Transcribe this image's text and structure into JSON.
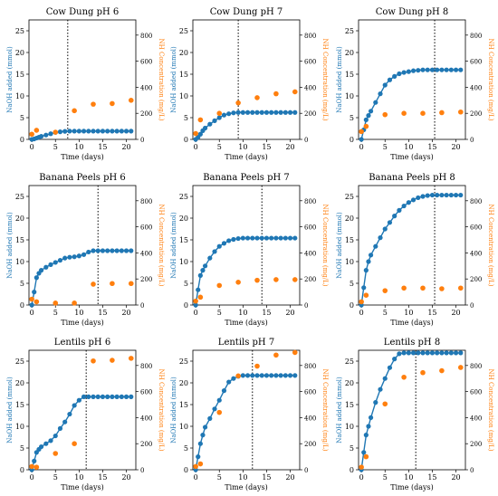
{
  "figure": {
    "left_ylabel": "NaOH added (mmol)",
    "right_ylabel": "NH Concentration (mg/L)",
    "xlabel": "Time (days)",
    "colors": {
      "naoh": "#1f77b4",
      "nh": "#ff7f0e",
      "axis": "#000000"
    }
  },
  "chart_data": [
    {
      "type": "scatter",
      "title": "Cow Dung pH 6",
      "xlabel": "Time (days)",
      "ylabel": "NaOH added (mmol)",
      "y2label": "NH Concentration (mg/L)",
      "xlim": [
        -0.6,
        22
      ],
      "ylim": [
        0,
        27.5
      ],
      "y2lim": [
        0,
        916.7
      ],
      "xticks": [
        0,
        5,
        10,
        15,
        20
      ],
      "yticks": [
        0,
        5,
        10,
        15,
        20,
        25
      ],
      "y2ticks": [
        0,
        200,
        400,
        600,
        800
      ],
      "vline": 7.6,
      "series": [
        {
          "axis": "left",
          "style": "line+markers",
          "x": [
            0,
            0.5,
            1,
            1.5,
            2,
            3,
            4,
            5,
            6,
            7,
            8,
            9,
            10,
            11,
            12,
            13,
            14,
            15,
            16,
            17,
            18,
            19,
            20,
            21
          ],
          "y": [
            0,
            0.1,
            0.3,
            0.5,
            0.7,
            1.0,
            1.3,
            1.6,
            1.75,
            1.85,
            1.9,
            1.9,
            1.9,
            1.9,
            1.9,
            1.9,
            1.9,
            1.9,
            1.9,
            1.9,
            1.9,
            1.9,
            1.9,
            1.9
          ]
        },
        {
          "axis": "right",
          "style": "markers",
          "x": [
            0,
            1,
            5,
            9,
            13,
            17,
            21
          ],
          "y": [
            40,
            70,
            55,
            220,
            270,
            275,
            300
          ]
        }
      ]
    },
    {
      "type": "scatter",
      "title": "Cow Dung pH 7",
      "xlabel": "Time (days)",
      "ylabel": "NaOH added (mmol)",
      "y2label": "NH Concentration (mg/L)",
      "xlim": [
        -0.6,
        22
      ],
      "ylim": [
        0,
        27.5
      ],
      "y2lim": [
        0,
        916.7
      ],
      "xticks": [
        0,
        5,
        10,
        15,
        20
      ],
      "yticks": [
        0,
        5,
        10,
        15,
        20,
        25
      ],
      "y2ticks": [
        0,
        200,
        400,
        600,
        800
      ],
      "vline": 9,
      "series": [
        {
          "axis": "left",
          "style": "line+markers",
          "x": [
            0,
            0.5,
            1,
            1.5,
            2,
            3,
            4,
            5,
            6,
            7,
            8,
            9,
            10,
            11,
            12,
            13,
            14,
            15,
            16,
            17,
            18,
            19,
            20,
            21
          ],
          "y": [
            0,
            0.5,
            1.2,
            2,
            2.6,
            3.5,
            4.3,
            5,
            5.6,
            5.9,
            6.1,
            6.2,
            6.2,
            6.2,
            6.2,
            6.2,
            6.2,
            6.2,
            6.2,
            6.2,
            6.2,
            6.2,
            6.2,
            6.2
          ]
        },
        {
          "axis": "right",
          "style": "markers",
          "x": [
            0,
            1,
            5,
            9,
            13,
            17,
            21
          ],
          "y": [
            45,
            150,
            200,
            280,
            320,
            350,
            365
          ]
        }
      ]
    },
    {
      "type": "scatter",
      "title": "Cow Dung pH 8",
      "xlabel": "Time (days)",
      "ylabel": "NaOH added (mmol)",
      "y2label": "NH Concentration (mg/L)",
      "xlim": [
        -0.6,
        22
      ],
      "ylim": [
        0,
        27.5
      ],
      "y2lim": [
        0,
        916.7
      ],
      "xticks": [
        0,
        5,
        10,
        15,
        20
      ],
      "yticks": [
        0,
        5,
        10,
        15,
        20,
        25
      ],
      "y2ticks": [
        0,
        200,
        400,
        600,
        800
      ],
      "vline": 15.5,
      "series": [
        {
          "axis": "left",
          "style": "line+markers",
          "x": [
            0,
            0.5,
            1,
            1.5,
            2,
            3,
            4,
            5,
            6,
            7,
            8,
            9,
            10,
            11,
            12,
            13,
            14,
            15,
            16,
            17,
            18,
            19,
            20,
            21
          ],
          "y": [
            0,
            2.2,
            4.5,
            5.5,
            6.5,
            8.5,
            10.5,
            12.5,
            13.7,
            14.5,
            15.1,
            15.4,
            15.6,
            15.8,
            15.9,
            16,
            16,
            16,
            16,
            16,
            16,
            16,
            16,
            16
          ]
        },
        {
          "axis": "right",
          "style": "markers",
          "x": [
            0,
            1,
            5,
            9,
            13,
            17,
            21
          ],
          "y": [
            60,
            100,
            190,
            200,
            200,
            205,
            210
          ]
        }
      ]
    },
    {
      "type": "scatter",
      "title": "Banana Peels pH 6",
      "xlabel": "Time (days)",
      "ylabel": "NaOH added (mmol)",
      "y2label": "NH Concentration (mg/L)",
      "xlim": [
        -0.6,
        22
      ],
      "ylim": [
        0,
        27.5
      ],
      "y2lim": [
        0,
        916.7
      ],
      "xticks": [
        0,
        5,
        10,
        15,
        20
      ],
      "yticks": [
        0,
        5,
        10,
        15,
        20,
        25
      ],
      "y2ticks": [
        0,
        200,
        400,
        600,
        800
      ],
      "vline": 14,
      "series": [
        {
          "axis": "left",
          "style": "line+markers",
          "x": [
            0,
            0.5,
            1,
            1.5,
            2,
            3,
            4,
            5,
            6,
            7,
            8,
            9,
            10,
            11,
            12,
            13,
            14,
            15,
            16,
            17,
            18,
            19,
            20,
            21
          ],
          "y": [
            0,
            3,
            6.3,
            7.3,
            8,
            8.7,
            9.3,
            9.8,
            10.3,
            10.8,
            11,
            11.1,
            11.3,
            11.6,
            12.2,
            12.5,
            12.5,
            12.5,
            12.5,
            12.5,
            12.5,
            12.5,
            12.5,
            12.5
          ]
        },
        {
          "axis": "right",
          "style": "markers",
          "x": [
            0,
            1,
            5,
            9,
            13,
            17,
            21
          ],
          "y": [
            45,
            25,
            15,
            15,
            160,
            165,
            165
          ]
        }
      ]
    },
    {
      "type": "scatter",
      "title": "Banana Peels pH 7",
      "xlabel": "Time (days)",
      "ylabel": "NaOH added (mmol)",
      "y2label": "NH Concentration (mg/L)",
      "xlim": [
        -0.6,
        22
      ],
      "ylim": [
        0,
        27.5
      ],
      "y2lim": [
        0,
        916.7
      ],
      "xticks": [
        0,
        5,
        10,
        15,
        20
      ],
      "yticks": [
        0,
        5,
        10,
        15,
        20,
        25
      ],
      "y2ticks": [
        0,
        200,
        400,
        600,
        800
      ],
      "vline": 14,
      "series": [
        {
          "axis": "left",
          "style": "line+markers",
          "x": [
            0,
            0.5,
            1,
            1.5,
            2,
            3,
            4,
            5,
            6,
            7,
            8,
            9,
            10,
            11,
            12,
            13,
            14,
            15,
            16,
            17,
            18,
            19,
            20,
            21
          ],
          "y": [
            0,
            3.5,
            6.8,
            8,
            9,
            10.8,
            12.3,
            13.5,
            14.2,
            14.8,
            15.1,
            15.3,
            15.4,
            15.4,
            15.4,
            15.4,
            15.4,
            15.4,
            15.4,
            15.4,
            15.4,
            15.4,
            15.4,
            15.4
          ]
        },
        {
          "axis": "right",
          "style": "markers",
          "x": [
            0,
            1,
            5,
            9,
            13,
            17,
            21
          ],
          "y": [
            30,
            60,
            150,
            175,
            190,
            195,
            195
          ]
        }
      ]
    },
    {
      "type": "scatter",
      "title": "Banana Peels pH 8",
      "xlabel": "Time (days)",
      "ylabel": "NaOH added (mmol)",
      "y2label": "NH Concentration (mg/L)",
      "xlim": [
        -0.6,
        22
      ],
      "ylim": [
        0,
        27.5
      ],
      "y2lim": [
        0,
        916.7
      ],
      "xticks": [
        0,
        5,
        10,
        15,
        20
      ],
      "yticks": [
        0,
        5,
        10,
        15,
        20,
        25
      ],
      "y2ticks": [
        0,
        200,
        400,
        600,
        800
      ],
      "vline": 15.5,
      "series": [
        {
          "axis": "left",
          "style": "line+markers",
          "x": [
            0,
            0.5,
            1,
            1.5,
            2,
            3,
            4,
            5,
            6,
            7,
            8,
            9,
            10,
            11,
            12,
            13,
            14,
            15,
            16,
            17,
            18,
            19,
            20,
            21
          ],
          "y": [
            0,
            4,
            8,
            10,
            11.5,
            13.5,
            15.5,
            17.5,
            19,
            20.5,
            21.8,
            22.8,
            23.6,
            24.2,
            24.7,
            25,
            25.2,
            25.3,
            25.3,
            25.3,
            25.3,
            25.3,
            25.3,
            25.3
          ]
        },
        {
          "axis": "right",
          "style": "markers",
          "x": [
            0,
            1,
            5,
            9,
            13,
            17,
            21
          ],
          "y": [
            25,
            75,
            110,
            130,
            130,
            125,
            130
          ]
        }
      ]
    },
    {
      "type": "scatter",
      "title": "Lentils pH 6",
      "xlabel": "Time (days)",
      "ylabel": "NaOH added (mmol)",
      "y2label": "NH Concentration (mg/L)",
      "xlim": [
        -0.6,
        22
      ],
      "ylim": [
        0,
        27.5
      ],
      "y2lim": [
        0,
        916.7
      ],
      "xticks": [
        0,
        5,
        10,
        15,
        20
      ],
      "yticks": [
        0,
        5,
        10,
        15,
        20,
        25
      ],
      "y2ticks": [
        0,
        200,
        400,
        600,
        800
      ],
      "vline": 11.5,
      "series": [
        {
          "axis": "left",
          "style": "line+markers",
          "x": [
            0,
            0.5,
            1,
            1.5,
            2,
            3,
            4,
            5,
            6,
            7,
            8,
            9,
            10,
            11,
            12,
            13,
            14,
            15,
            16,
            17,
            18,
            19,
            20,
            21
          ],
          "y": [
            0,
            2,
            4,
            4.7,
            5.3,
            6,
            6.7,
            7.8,
            9.5,
            11,
            12.8,
            14.8,
            16,
            16.8,
            16.8,
            16.8,
            16.8,
            16.8,
            16.8,
            16.8,
            16.8,
            16.8,
            16.8,
            16.8
          ]
        },
        {
          "axis": "right",
          "style": "markers",
          "x": [
            0,
            1,
            5,
            9,
            13,
            17,
            21
          ],
          "y": [
            25,
            20,
            125,
            200,
            835,
            840,
            855
          ]
        }
      ]
    },
    {
      "type": "scatter",
      "title": "Lentils pH 7",
      "xlabel": "Time (days)",
      "ylabel": "NaOH added (mmol)",
      "y2label": "NH Concentration (mg/L)",
      "xlim": [
        -0.6,
        22
      ],
      "ylim": [
        0,
        27.5
      ],
      "y2lim": [
        0,
        916.7
      ],
      "xticks": [
        0,
        5,
        10,
        15,
        20
      ],
      "yticks": [
        0,
        5,
        10,
        15,
        20,
        25
      ],
      "y2ticks": [
        0,
        200,
        400,
        600,
        800
      ],
      "vline": 12,
      "series": [
        {
          "axis": "left",
          "style": "line+markers",
          "x": [
            0,
            0.5,
            1,
            1.5,
            2,
            3,
            4,
            5,
            6,
            7,
            8,
            9,
            10,
            11,
            12,
            13,
            14,
            15,
            16,
            17,
            18,
            19,
            20,
            21
          ],
          "y": [
            0,
            3,
            6,
            8,
            9.8,
            11.8,
            14,
            16,
            18.2,
            20.2,
            21,
            21.5,
            21.7,
            21.7,
            21.7,
            21.7,
            21.7,
            21.7,
            21.7,
            21.7,
            21.7,
            21.7,
            21.7,
            21.7
          ]
        },
        {
          "axis": "right",
          "style": "markers",
          "x": [
            0,
            1,
            5,
            9,
            13,
            17,
            21
          ],
          "y": [
            25,
            45,
            440,
            720,
            795,
            880,
            900
          ]
        }
      ]
    },
    {
      "type": "scatter",
      "title": "Lentils pH 8",
      "xlabel": "Time (days)",
      "ylabel": "NaOH added (mmol)",
      "y2label": "NH Concentration (mg/L)",
      "xlim": [
        -0.6,
        22
      ],
      "ylim": [
        0,
        27.5
      ],
      "y2lim": [
        0,
        916.7
      ],
      "xticks": [
        0,
        5,
        10,
        15,
        20
      ],
      "yticks": [
        0,
        5,
        10,
        15,
        20,
        25
      ],
      "y2ticks": [
        0,
        200,
        400,
        600,
        800
      ],
      "vline": 11.5,
      "series": [
        {
          "axis": "left",
          "style": "line+markers",
          "x": [
            0,
            0.5,
            1,
            1.5,
            2,
            3,
            4,
            5,
            6,
            7,
            8,
            9,
            10,
            11,
            12,
            13,
            14,
            15,
            16,
            17,
            18,
            19,
            20,
            21
          ],
          "y": [
            0,
            4,
            8,
            10,
            12,
            15.5,
            18.5,
            21,
            23.5,
            25.5,
            26.7,
            26.9,
            26.9,
            26.9,
            26.9,
            26.9,
            26.9,
            26.9,
            26.9,
            26.9,
            26.9,
            26.9,
            26.9,
            26.9
          ]
        },
        {
          "axis": "right",
          "style": "markers",
          "x": [
            0,
            1,
            5,
            9,
            13,
            17,
            21
          ],
          "y": [
            20,
            100,
            505,
            710,
            745,
            760,
            785
          ]
        }
      ]
    }
  ]
}
